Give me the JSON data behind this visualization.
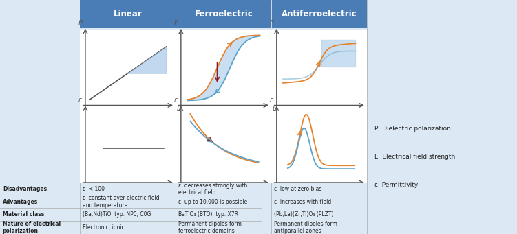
{
  "bg_color": "#dce9f5",
  "header_bg": "#4a7db5",
  "header_text_color": "#ffffff",
  "plot_bg": "#ffffff",
  "table_header_cols": [
    "Linear",
    "Ferroelectric",
    "Antiferroelectric"
  ],
  "row_labels": [
    "Nature of electrical\npolarization",
    "Material class",
    "Advantages",
    "Disadvantages"
  ],
  "col1_vals": [
    "Electronic, ionic",
    "(Ba,Nd)TiO, typ. NP0, C0G",
    "ε  constant over electric field\nand temperature",
    "ε  < 100"
  ],
  "col2_vals": [
    "Permanent dipoles form\nferroelectric domains",
    "BaTiO₃ (BTO), typ. X7R",
    "ε  up to 10,000 is possible",
    "ε  decreases strongly with\nelectrical field"
  ],
  "col3_vals": [
    "Permanent dipoles form\nantiparallel zones",
    "(Pb,La)(Zr,Ti)O₃ (PLZT)",
    "ε  increases with field",
    "ε  low at zero bias"
  ],
  "legend_items": [
    "P  Dielectric polarization",
    "E  Electrical field strength",
    "ε  Permittivity"
  ],
  "orange_color": "#e8822a",
  "blue_color": "#5ba3c9",
  "dark_red_color": "#8b2020",
  "fill_blue": "#a8c8e8",
  "axis_color": "#555555",
  "line_color_dark": "#555555"
}
